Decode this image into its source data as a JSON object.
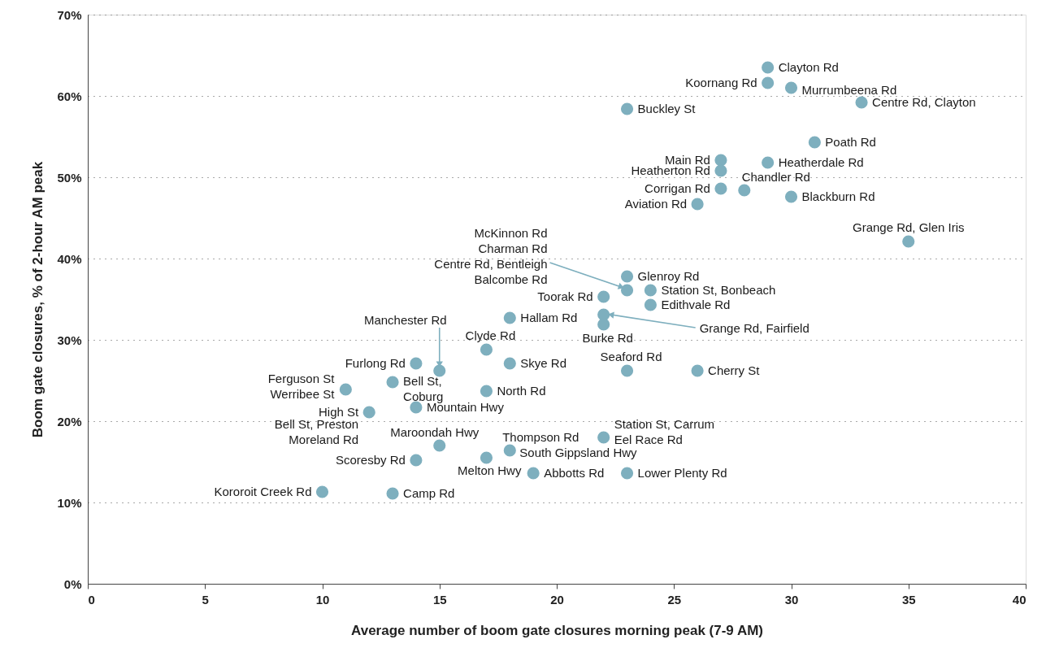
{
  "chart_data": {
    "type": "scatter",
    "xlabel": "Average number of boom gate closures morning peak (7-9 AM)",
    "ylabel": "Boom gate closures, % of 2-hour AM peak",
    "color": "#7eafbe",
    "marker": "circle",
    "grid": "y",
    "xlim": [
      0,
      40
    ],
    "xticks": [
      0,
      5,
      10,
      15,
      20,
      25,
      30,
      35,
      40
    ],
    "ylim": [
      0,
      70
    ],
    "yticks": [
      {
        "value": 0,
        "label": "0%"
      },
      {
        "value": 10,
        "label": "10%"
      },
      {
        "value": 20,
        "label": "20%"
      },
      {
        "value": 30,
        "label": "30%"
      },
      {
        "value": 40,
        "label": "40%"
      },
      {
        "value": 50,
        "label": "50%"
      },
      {
        "value": 60,
        "label": "60%"
      },
      {
        "value": 70,
        "label": "70%"
      }
    ],
    "x": [
      29,
      29,
      30,
      33,
      23,
      31,
      27,
      29,
      27,
      28,
      27,
      30,
      26,
      35,
      23,
      23,
      24,
      22,
      24,
      18,
      22,
      22,
      17,
      14,
      18,
      15,
      23,
      26,
      13,
      11,
      17,
      14,
      12,
      15,
      14,
      17,
      18,
      22,
      19,
      23,
      10,
      13
    ],
    "values": [
      63.5,
      61.6,
      61.0,
      59.2,
      58.4,
      54.3,
      52.1,
      51.8,
      50.8,
      48.4,
      48.6,
      47.6,
      46.7,
      42.1,
      37.8,
      36.1,
      36.1,
      35.3,
      34.3,
      32.7,
      33.1,
      31.9,
      28.8,
      27.1,
      27.1,
      26.2,
      26.2,
      26.2,
      24.8,
      23.9,
      23.7,
      21.7,
      21.1,
      17.0,
      15.2,
      15.5,
      16.4,
      18.0,
      13.6,
      13.6,
      11.3,
      11.1
    ],
    "annotations": [
      {
        "text": "Clayton Rd",
        "x": 29,
        "y": 63.5
      },
      {
        "text": "Koornang Rd",
        "x": 29,
        "y": 61.6
      },
      {
        "text": "Murrumbeena Rd",
        "x": 30,
        "y": 61.0
      },
      {
        "text": "Centre Rd, Clayton",
        "x": 33,
        "y": 59.2
      },
      {
        "text": "Buckley St",
        "x": 23,
        "y": 58.4
      },
      {
        "text": "Poath Rd",
        "x": 31,
        "y": 54.3
      },
      {
        "text": "Main Rd",
        "x": 27,
        "y": 52.1
      },
      {
        "text": "Heatherdale Rd",
        "x": 29,
        "y": 51.8
      },
      {
        "text": "Heatherton Rd",
        "x": 27,
        "y": 50.8
      },
      {
        "text": "Chandler Rd",
        "x": 28,
        "y": 48.4
      },
      {
        "text": "Corrigan Rd",
        "x": 27,
        "y": 48.6
      },
      {
        "text": "Blackburn Rd",
        "x": 30,
        "y": 47.6
      },
      {
        "text": "Aviation Rd",
        "x": 26,
        "y": 46.7
      },
      {
        "text": "Grange Rd, Glen Iris",
        "x": 35,
        "y": 42.1
      },
      {
        "text": "Glenroy Rd",
        "x": 23,
        "y": 37.8
      },
      {
        "text": "McKinnon Rd\nCharman Rd\nCentre Rd, Bentleigh\nBalcombe Rd",
        "x": 23,
        "y": 36.1
      },
      {
        "text": "Station St, Bonbeach",
        "x": 24,
        "y": 36.1
      },
      {
        "text": "Toorak Rd",
        "x": 22,
        "y": 35.3
      },
      {
        "text": "Edithvale Rd",
        "x": 24,
        "y": 34.3
      },
      {
        "text": "Hallam Rd",
        "x": 18,
        "y": 32.7
      },
      {
        "text": "Grange Rd, Fairfield",
        "x": 22,
        "y": 33.1
      },
      {
        "text": "Burke Rd",
        "x": 22,
        "y": 31.9
      },
      {
        "text": "Clyde Rd",
        "x": 17,
        "y": 28.8
      },
      {
        "text": "Furlong Rd",
        "x": 14,
        "y": 27.1
      },
      {
        "text": "Skye Rd",
        "x": 18,
        "y": 27.1
      },
      {
        "text": "Manchester Rd",
        "x": 15,
        "y": 26.2
      },
      {
        "text": "Seaford Rd",
        "x": 23,
        "y": 26.2
      },
      {
        "text": "Cherry St",
        "x": 26,
        "y": 26.2
      },
      {
        "text": "Bell St,\nCoburg",
        "x": 13,
        "y": 24.8
      },
      {
        "text": "Ferguson St\nWerribee St",
        "x": 11,
        "y": 23.9
      },
      {
        "text": "North Rd",
        "x": 17,
        "y": 23.7
      },
      {
        "text": "Mountain Hwy",
        "x": 14,
        "y": 21.7
      },
      {
        "text": "High St",
        "x": 12,
        "y": 21.1
      },
      {
        "text": "Bell St, Preston\nMoreland Rd",
        "x": 12,
        "y": 21.1
      },
      {
        "text": "Maroondah Hwy",
        "x": 15,
        "y": 17.0
      },
      {
        "text": "Scoresby Rd",
        "x": 14,
        "y": 15.2
      },
      {
        "text": "Melton Hwy",
        "x": 17,
        "y": 15.5
      },
      {
        "text": "Thompson Rd",
        "x": 18,
        "y": 16.4
      },
      {
        "text": "South Gippsland Hwy",
        "x": 18,
        "y": 16.4
      },
      {
        "text": "Station St, Carrum\nEel Race Rd",
        "x": 22,
        "y": 18.0
      },
      {
        "text": "Abbotts Rd",
        "x": 19,
        "y": 13.6
      },
      {
        "text": "Lower Plenty Rd",
        "x": 23,
        "y": 13.6
      },
      {
        "text": "Kororoit Creek Rd",
        "x": 10,
        "y": 11.3
      },
      {
        "text": "Camp Rd",
        "x": 13,
        "y": 11.1
      }
    ]
  }
}
